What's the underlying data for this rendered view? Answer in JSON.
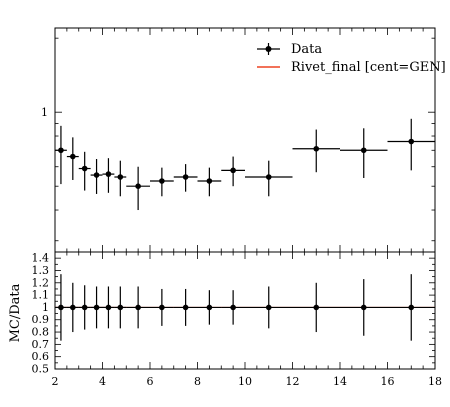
{
  "chart_data": [
    {
      "type": "scatter",
      "panel": "main",
      "xlim": [
        2,
        18
      ],
      "y_scale": "log",
      "ylim": [
        0.27,
        2.2
      ],
      "y_tick_labels": [
        "1"
      ],
      "legend": {
        "placement": "top-right",
        "entries": [
          "Data",
          "Rivet_final [cent=GEN]"
        ]
      },
      "series": [
        {
          "name": "Data",
          "points": [
            {
              "x": 2.25,
              "xerr": 0.25,
              "y": 0.7,
              "yerr_lo": 0.19,
              "yerr_hi": 0.18
            },
            {
              "x": 2.75,
              "xerr": 0.25,
              "y": 0.66,
              "yerr_lo": 0.13,
              "yerr_hi": 0.13
            },
            {
              "x": 3.25,
              "xerr": 0.25,
              "y": 0.59,
              "yerr_lo": 0.11,
              "yerr_hi": 0.1
            },
            {
              "x": 3.75,
              "xerr": 0.25,
              "y": 0.555,
              "yerr_lo": 0.09,
              "yerr_hi": 0.09
            },
            {
              "x": 4.25,
              "xerr": 0.25,
              "y": 0.56,
              "yerr_lo": 0.09,
              "yerr_hi": 0.09
            },
            {
              "x": 4.75,
              "xerr": 0.25,
              "y": 0.545,
              "yerr_lo": 0.09,
              "yerr_hi": 0.09
            },
            {
              "x": 5.5,
              "xerr": 0.5,
              "y": 0.5,
              "yerr_lo": 0.1,
              "yerr_hi": 0.1
            },
            {
              "x": 6.5,
              "xerr": 0.5,
              "y": 0.525,
              "yerr_lo": 0.07,
              "yerr_hi": 0.07
            },
            {
              "x": 7.5,
              "xerr": 0.5,
              "y": 0.545,
              "yerr_lo": 0.07,
              "yerr_hi": 0.07
            },
            {
              "x": 8.5,
              "xerr": 0.5,
              "y": 0.525,
              "yerr_lo": 0.07,
              "yerr_hi": 0.07
            },
            {
              "x": 9.5,
              "xerr": 0.5,
              "y": 0.58,
              "yerr_lo": 0.08,
              "yerr_hi": 0.08
            },
            {
              "x": 11,
              "xerr": 1,
              "y": 0.545,
              "yerr_lo": 0.09,
              "yerr_hi": 0.09
            },
            {
              "x": 13,
              "xerr": 1,
              "y": 0.71,
              "yerr_lo": 0.14,
              "yerr_hi": 0.14
            },
            {
              "x": 15,
              "xerr": 1,
              "y": 0.7,
              "yerr_lo": 0.16,
              "yerr_hi": 0.16
            },
            {
              "x": 17,
              "xerr": 1,
              "y": 0.76,
              "yerr_lo": 0.18,
              "yerr_hi": 0.18
            }
          ]
        }
      ]
    },
    {
      "type": "scatter",
      "panel": "ratio",
      "ylabel": "MC/Data",
      "xlim": [
        2,
        18
      ],
      "ylim": [
        0.5,
        1.45
      ],
      "x_ticks": [
        2,
        4,
        6,
        8,
        10,
        12,
        14,
        16,
        18
      ],
      "y_ticks": [
        0.5,
        0.6,
        0.7,
        0.8,
        0.9,
        1,
        1.1,
        1.2,
        1.3,
        1.4
      ],
      "series": [
        {
          "name": "Data",
          "points": [
            {
              "x": 2.25,
              "xerr": 0.25,
              "y": 1,
              "yerr": 0.27
            },
            {
              "x": 2.75,
              "xerr": 0.25,
              "y": 1,
              "yerr": 0.2
            },
            {
              "x": 3.25,
              "xerr": 0.25,
              "y": 1,
              "yerr": 0.18
            },
            {
              "x": 3.75,
              "xerr": 0.25,
              "y": 1,
              "yerr": 0.17
            },
            {
              "x": 4.25,
              "xerr": 0.25,
              "y": 1,
              "yerr": 0.17
            },
            {
              "x": 4.75,
              "xerr": 0.25,
              "y": 1,
              "yerr": 0.17
            },
            {
              "x": 5.5,
              "xerr": 0.5,
              "y": 1,
              "yerr": 0.17
            },
            {
              "x": 6.5,
              "xerr": 0.5,
              "y": 1,
              "yerr": 0.15
            },
            {
              "x": 7.5,
              "xerr": 0.5,
              "y": 1,
              "yerr": 0.15
            },
            {
              "x": 8.5,
              "xerr": 0.5,
              "y": 1,
              "yerr": 0.14
            },
            {
              "x": 9.5,
              "xerr": 0.5,
              "y": 1,
              "yerr": 0.14
            },
            {
              "x": 11,
              "xerr": 1,
              "y": 1,
              "yerr": 0.17
            },
            {
              "x": 13,
              "xerr": 1,
              "y": 1,
              "yerr": 0.2
            },
            {
              "x": 15,
              "xerr": 1,
              "y": 1,
              "yerr": 0.23
            },
            {
              "x": 17,
              "xerr": 1,
              "y": 1,
              "yerr": 0.27
            }
          ]
        }
      ]
    }
  ],
  "colors": {
    "data": "#000000",
    "mc": "#ee4422",
    "frame": "#000000"
  }
}
